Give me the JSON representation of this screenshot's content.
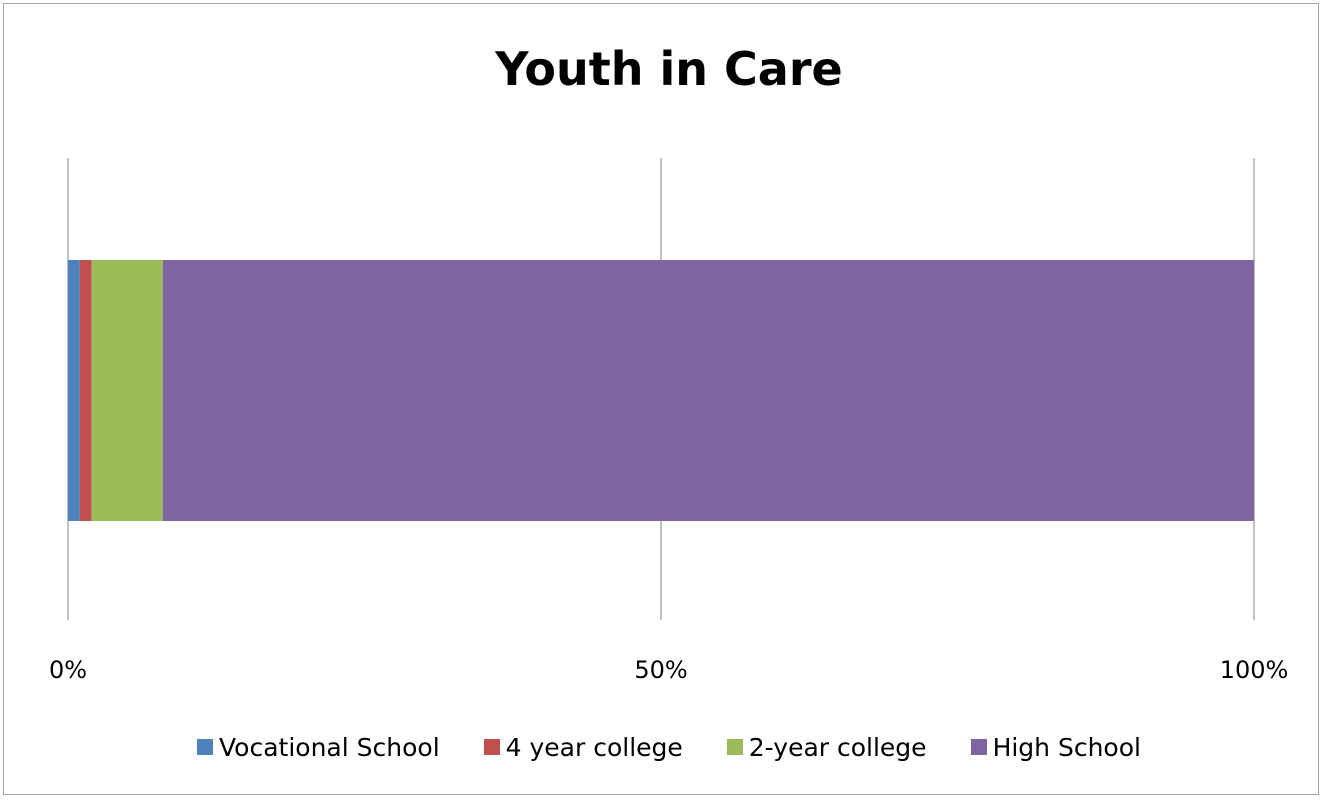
{
  "chart_data": {
    "type": "bar",
    "orientation": "horizontal",
    "stacked": "percent",
    "title": "Youth in Care",
    "xlabel": "",
    "ylabel": "",
    "xlim": [
      0,
      100
    ],
    "x_ticks": [
      "0%",
      "50%",
      "100%"
    ],
    "grid": true,
    "legend_position": "bottom",
    "categories": [
      ""
    ],
    "series": [
      {
        "name": "Vocational School",
        "values": [
          1
        ],
        "color": "#4f81bd"
      },
      {
        "name": "4 year college",
        "values": [
          1
        ],
        "color": "#c0504d"
      },
      {
        "name": "2-year college",
        "values": [
          6
        ],
        "color": "#9bbb59"
      },
      {
        "name": "High School",
        "values": [
          92
        ],
        "color": "#8064a2"
      }
    ]
  }
}
